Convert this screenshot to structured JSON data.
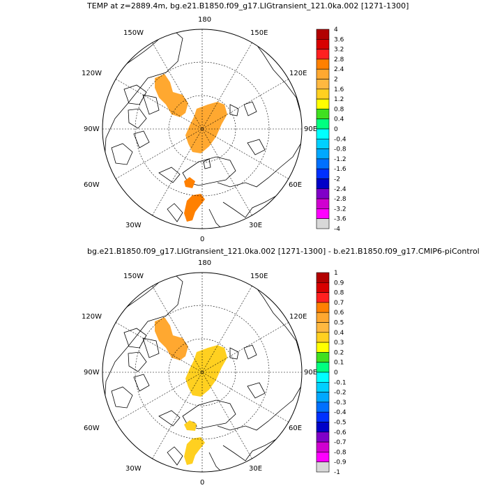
{
  "panels": [
    {
      "title": "TEMP at z=2889.4m, bg.e21.B1850.f09_g17.LIGtransient_121.0ka.002 [1271-1300]",
      "lon_labels": [
        "180",
        "150W",
        "150E",
        "120W",
        "120E",
        "90W",
        "90E",
        "60W",
        "60E",
        "30W",
        "30E",
        "0"
      ],
      "colorbar": {
        "labels": [
          "4",
          "3.6",
          "3.2",
          "2.8",
          "2.4",
          "2",
          "1.6",
          "1.2",
          "0.8",
          "0.4",
          "0",
          "-0.4",
          "-0.8",
          "-1.2",
          "-1.6",
          "-2",
          "-2.4",
          "-2.8",
          "-3.2",
          "-3.6",
          "-4"
        ]
      }
    },
    {
      "title": "bg.e21.B1850.f09_g17.LIGtransient_121.0ka.002 [1271-1300] - b.e21.B1850.f09_g17.CMIP6-piControl",
      "lon_labels": [
        "180",
        "150W",
        "150E",
        "120W",
        "120E",
        "90W",
        "90E",
        "60W",
        "60E",
        "30W",
        "30E",
        "0"
      ],
      "colorbar": {
        "labels": [
          "1",
          "0.9",
          "0.8",
          "0.7",
          "0.6",
          "0.5",
          "0.4",
          "0.3",
          "0.2",
          "0.1",
          "0",
          "-0.1",
          "-0.2",
          "-0.3",
          "-0.4",
          "-0.5",
          "-0.6",
          "-0.7",
          "-0.8",
          "-0.9",
          "-1"
        ]
      }
    }
  ],
  "colors": [
    "#b20000",
    "#d80000",
    "#ff2020",
    "#ff8000",
    "#ffa830",
    "#ffb840",
    "#ffd020",
    "#ffff00",
    "#40e020",
    "#00ff80",
    "#00ffff",
    "#00d0ff",
    "#00a8ff",
    "#0070ff",
    "#0030ff",
    "#0000c8",
    "#8000c8",
    "#d000d0",
    "#ff00ff",
    "#d8d8d8",
    "#707070"
  ]
}
